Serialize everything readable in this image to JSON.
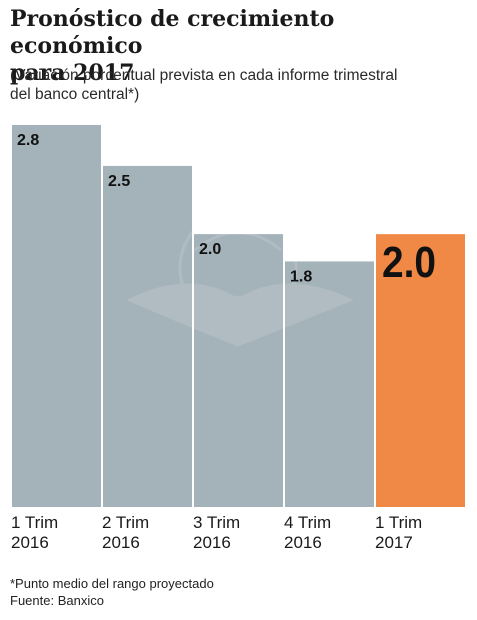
{
  "header": {
    "title_line1": "Pronóstico de crecimiento económico",
    "title_line2": "para 2017",
    "subtitle_line1": "(Variación porcentual prevista en cada informe trimestral",
    "subtitle_line2": "del banco central*)"
  },
  "chart_data": {
    "type": "bar",
    "categories": [
      [
        "1 Trim",
        "2016"
      ],
      [
        "2 Trim",
        "2016"
      ],
      [
        "3 Trim",
        "2016"
      ],
      [
        "4 Trim",
        "2016"
      ],
      [
        "1 Trim",
        "2017"
      ]
    ],
    "values": [
      2.8,
      2.5,
      2.0,
      1.8,
      2.0
    ],
    "value_labels": [
      "2.8",
      "2.5",
      "2.0",
      "1.8",
      "2.0"
    ],
    "highlight_index": 4,
    "colors": {
      "bar": "#a4b2b9",
      "highlight": "#f08945",
      "label": "#111111"
    },
    "ylim": [
      0,
      2.8
    ]
  },
  "footer": {
    "note": "*Punto medio del rango proyectado",
    "source": "Fuente: Banxico"
  }
}
